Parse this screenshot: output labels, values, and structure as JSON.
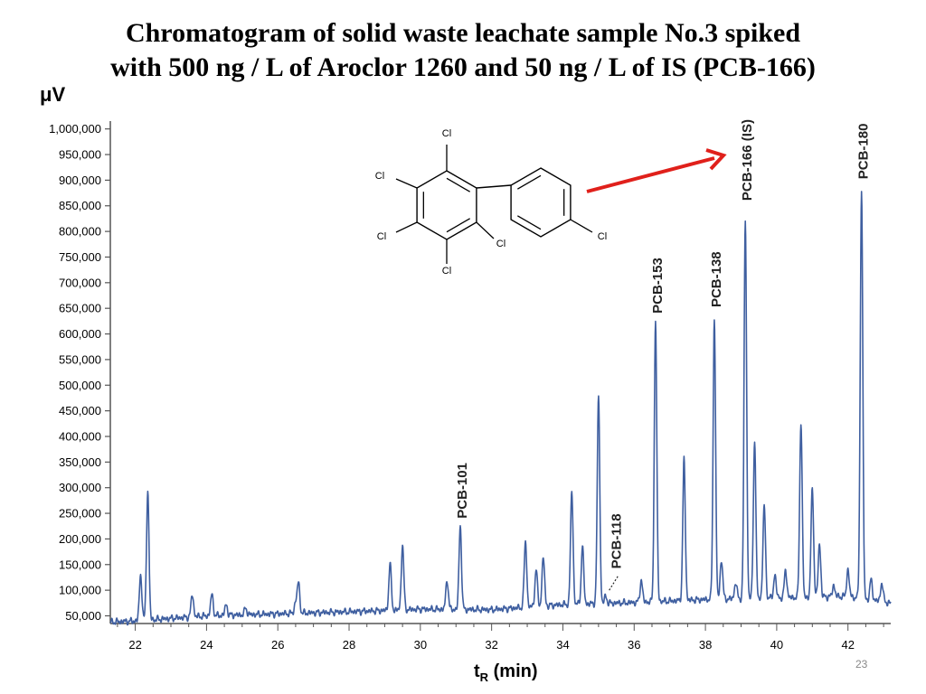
{
  "title": {
    "line1": "Chromatogram of solid waste leachate sample No.3 spiked",
    "line2": "with 500 ng / L of Aroclor 1260 and 50 ng / L of IS (PCB-166)"
  },
  "page_number": "23",
  "chart_data": {
    "type": "line",
    "ylabel": "μV",
    "xlabel_main": "t",
    "xlabel_sub": "R",
    "xlabel_tail": " (min)",
    "xlim": [
      21.3,
      43.2
    ],
    "ylim": [
      35000,
      1010000
    ],
    "xticks": [
      22,
      24,
      26,
      28,
      30,
      32,
      34,
      36,
      38,
      40,
      42
    ],
    "xtick_labels": [
      "22",
      "24",
      "26",
      "28",
      "30",
      "32",
      "34",
      "36",
      "38",
      "40",
      "42"
    ],
    "yticks": [
      50000,
      100000,
      150000,
      200000,
      250000,
      300000,
      350000,
      400000,
      450000,
      500000,
      550000,
      600000,
      650000,
      700000,
      750000,
      800000,
      850000,
      900000,
      950000,
      1000000
    ],
    "ytick_labels": [
      "50,000",
      "100,000",
      "150,000",
      "200,000",
      "250,000",
      "300,000",
      "350,000",
      "400,000",
      "450,000",
      "500,000",
      "550,000",
      "600,000",
      "650,000",
      "700,000",
      "750,000",
      "800,000",
      "850,000",
      "900,000",
      "950,000",
      "1,000,000"
    ],
    "line_color": "#3f5fa0",
    "baseline": [
      [
        21.3,
        38000
      ],
      [
        22.0,
        40000
      ],
      [
        24.0,
        50000
      ],
      [
        28.0,
        58000
      ],
      [
        30.0,
        63000
      ],
      [
        32.0,
        62000
      ],
      [
        34.0,
        72000
      ],
      [
        36.0,
        76000
      ],
      [
        38.0,
        82000
      ],
      [
        40.0,
        85000
      ],
      [
        42.0,
        88000
      ],
      [
        43.2,
        75000
      ]
    ],
    "peaks": [
      {
        "t": 22.15,
        "h": 130000
      },
      {
        "t": 22.35,
        "h": 292000
      },
      {
        "t": 23.6,
        "h": 92000
      },
      {
        "t": 24.15,
        "h": 92000
      },
      {
        "t": 24.55,
        "h": 72000
      },
      {
        "t": 25.1,
        "h": 65000
      },
      {
        "t": 26.5,
        "h": 75000
      },
      {
        "t": 26.58,
        "h": 115000
      },
      {
        "t": 29.15,
        "h": 152000
      },
      {
        "t": 29.5,
        "h": 188000
      },
      {
        "t": 30.75,
        "h": 120000
      },
      {
        "t": 31.12,
        "h": 225000
      },
      {
        "t": 32.95,
        "h": 195000
      },
      {
        "t": 33.25,
        "h": 140000
      },
      {
        "t": 33.45,
        "h": 165000
      },
      {
        "t": 34.25,
        "h": 293000
      },
      {
        "t": 34.55,
        "h": 185000
      },
      {
        "t": 35.0,
        "h": 482000
      },
      {
        "t": 35.2,
        "h": 88000
      },
      {
        "t": 36.2,
        "h": 120000
      },
      {
        "t": 36.6,
        "h": 620000
      },
      {
        "t": 37.4,
        "h": 355000
      },
      {
        "t": 38.25,
        "h": 632000
      },
      {
        "t": 38.45,
        "h": 160000
      },
      {
        "t": 38.85,
        "h": 115000
      },
      {
        "t": 39.12,
        "h": 824000
      },
      {
        "t": 39.38,
        "h": 393000
      },
      {
        "t": 39.65,
        "h": 265000
      },
      {
        "t": 39.95,
        "h": 130000
      },
      {
        "t": 40.25,
        "h": 140000
      },
      {
        "t": 40.68,
        "h": 428000
      },
      {
        "t": 41.0,
        "h": 300000
      },
      {
        "t": 41.2,
        "h": 190000
      },
      {
        "t": 41.6,
        "h": 110000
      },
      {
        "t": 42.0,
        "h": 140000
      },
      {
        "t": 42.38,
        "h": 878000
      },
      {
        "t": 42.65,
        "h": 120000
      },
      {
        "t": 42.95,
        "h": 115000
      }
    ],
    "annotations": [
      {
        "label": "PCB-101",
        "t": 31.12,
        "y": 240000
      },
      {
        "label": "PCB-118",
        "t": 35.45,
        "y": 142000
      },
      {
        "label": "PCB-153",
        "t": 36.6,
        "y": 640000
      },
      {
        "label": "PCB-138",
        "t": 38.25,
        "y": 652000
      },
      {
        "label": "PCB-166 (IS)",
        "t": 39.12,
        "y": 860000
      },
      {
        "label": "PCB-180",
        "t": 42.38,
        "y": 902000
      }
    ]
  },
  "structure": {
    "atom_label": "Cl"
  },
  "colors": {
    "arrow": "#e0201b",
    "axis": "#555555",
    "molecule": "#000000"
  }
}
